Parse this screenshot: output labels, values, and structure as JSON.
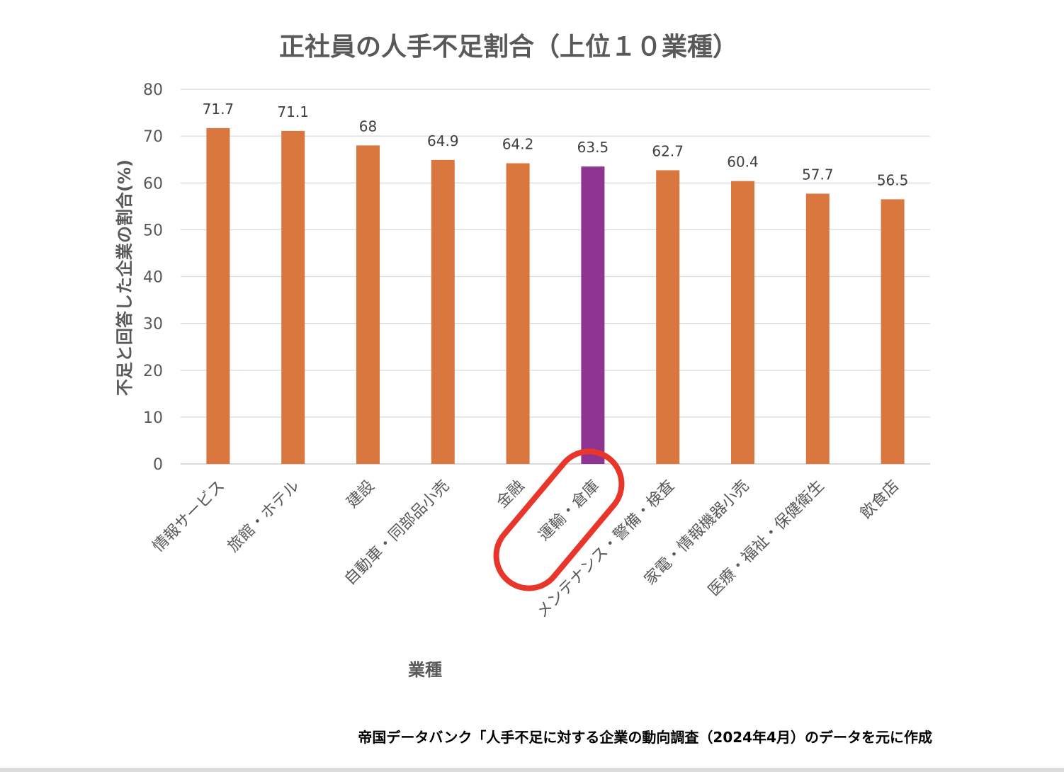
{
  "chart_data": {
    "type": "bar",
    "title": "正社員の人手不足割合（上位１０業種）",
    "xlabel": "業種",
    "ylabel": "不足と回答した企業の割合(%)",
    "ylim": [
      0,
      80
    ],
    "yticks": [
      0,
      10,
      20,
      30,
      40,
      50,
      60,
      70,
      80
    ],
    "grid": true,
    "categories": [
      "情報サービス",
      "旅館・ホテル",
      "建設",
      "自動車・同部品小売",
      "金融",
      "運輸・倉庫",
      "メンテナンス・警備・検査",
      "家電・情報機器小売",
      "医療・福祉・保健衛生",
      "飲食店"
    ],
    "values": [
      71.7,
      71.1,
      68,
      64.9,
      64.2,
      63.5,
      62.7,
      60.4,
      57.7,
      56.5
    ],
    "data_labels": [
      "71.7",
      "71.1",
      "68",
      "64.9",
      "64.2",
      "63.5",
      "62.7",
      "60.4",
      "57.7",
      "56.5"
    ],
    "highlight_category": "運輸・倉庫",
    "colors": {
      "bar": "#d9773f",
      "highlight": "#8e3591",
      "annotation_circle": "#e8362a",
      "grid": "#d9d9d9",
      "text": "#595959"
    },
    "source": "帝国データバンク「人手不足に対する企業の動向調査（2024年4月）のデータを元に作成"
  }
}
